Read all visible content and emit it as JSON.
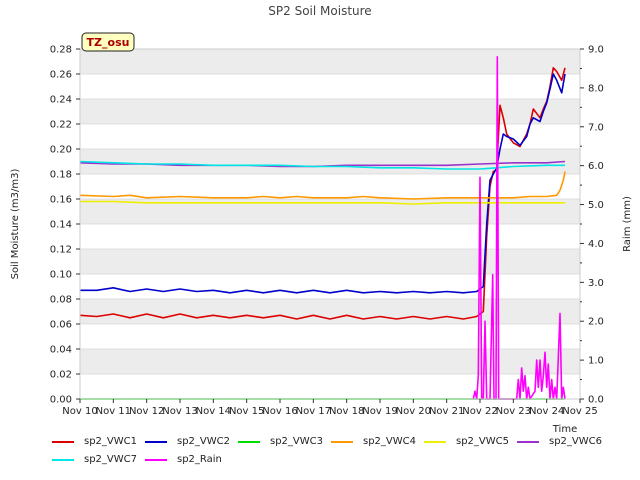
{
  "chart_data": {
    "type": "line",
    "title": "SP2 Soil Moisture",
    "xlabel": "Time",
    "ylabel": "Soil Moisture (m3/m3)",
    "y2label": "Raim (mm)",
    "annotation": "TZ_osu",
    "x_categories": [
      "Nov 10",
      "Nov 11",
      "Nov 12",
      "Nov 13",
      "Nov 14",
      "Nov 15",
      "Nov 16",
      "Nov 17",
      "Nov 18",
      "Nov 19",
      "Nov 20",
      "Nov 21",
      "Nov 22",
      "Nov 23",
      "Nov 24",
      "Nov 25"
    ],
    "xlim": [
      0,
      15
    ],
    "ylim": [
      0.0,
      0.28
    ],
    "yticks": [
      "0.00",
      "0.02",
      "0.04",
      "0.06",
      "0.08",
      "0.10",
      "0.12",
      "0.14",
      "0.16",
      "0.18",
      "0.20",
      "0.22",
      "0.24",
      "0.26",
      "0.28"
    ],
    "y2lim": [
      0.0,
      9.0
    ],
    "y2ticks": [
      "0.0",
      "1.0",
      "2.0",
      "3.0",
      "4.0",
      "5.0",
      "6.0",
      "7.0",
      "8.0",
      "9.0"
    ],
    "series": [
      {
        "name": "sp2_VWC1",
        "color": "#dd0000",
        "axis": "left",
        "points": [
          [
            0,
            0.067
          ],
          [
            0.5,
            0.066
          ],
          [
            1,
            0.068
          ],
          [
            1.5,
            0.065
          ],
          [
            2,
            0.068
          ],
          [
            2.5,
            0.065
          ],
          [
            3,
            0.068
          ],
          [
            3.5,
            0.065
          ],
          [
            4,
            0.067
          ],
          [
            4.5,
            0.065
          ],
          [
            5,
            0.067
          ],
          [
            5.5,
            0.065
          ],
          [
            6,
            0.067
          ],
          [
            6.5,
            0.064
          ],
          [
            7,
            0.067
          ],
          [
            7.5,
            0.064
          ],
          [
            8,
            0.067
          ],
          [
            8.5,
            0.064
          ],
          [
            9,
            0.066
          ],
          [
            9.5,
            0.064
          ],
          [
            10,
            0.066
          ],
          [
            10.5,
            0.064
          ],
          [
            11,
            0.066
          ],
          [
            11.5,
            0.064
          ],
          [
            11.9,
            0.066
          ],
          [
            12.1,
            0.07
          ],
          [
            12.2,
            0.13
          ],
          [
            12.3,
            0.17
          ],
          [
            12.4,
            0.182
          ],
          [
            12.5,
            0.183
          ],
          [
            12.6,
            0.235
          ],
          [
            12.7,
            0.225
          ],
          [
            12.8,
            0.212
          ],
          [
            13,
            0.205
          ],
          [
            13.2,
            0.202
          ],
          [
            13.4,
            0.212
          ],
          [
            13.5,
            0.22
          ],
          [
            13.6,
            0.232
          ],
          [
            13.8,
            0.225
          ],
          [
            13.9,
            0.232
          ],
          [
            14,
            0.238
          ],
          [
            14.1,
            0.25
          ],
          [
            14.2,
            0.265
          ],
          [
            14.3,
            0.262
          ],
          [
            14.45,
            0.255
          ],
          [
            14.55,
            0.265
          ]
        ]
      },
      {
        "name": "sp2_VWC2",
        "color": "#0000cc",
        "axis": "left",
        "points": [
          [
            0,
            0.087
          ],
          [
            0.5,
            0.087
          ],
          [
            1,
            0.089
          ],
          [
            1.5,
            0.086
          ],
          [
            2,
            0.088
          ],
          [
            2.5,
            0.086
          ],
          [
            3,
            0.088
          ],
          [
            3.5,
            0.086
          ],
          [
            4,
            0.087
          ],
          [
            4.5,
            0.085
          ],
          [
            5,
            0.087
          ],
          [
            5.5,
            0.085
          ],
          [
            6,
            0.087
          ],
          [
            6.5,
            0.085
          ],
          [
            7,
            0.087
          ],
          [
            7.5,
            0.085
          ],
          [
            8,
            0.087
          ],
          [
            8.5,
            0.085
          ],
          [
            9,
            0.086
          ],
          [
            9.5,
            0.085
          ],
          [
            10,
            0.086
          ],
          [
            10.5,
            0.085
          ],
          [
            11,
            0.086
          ],
          [
            11.5,
            0.085
          ],
          [
            11.9,
            0.086
          ],
          [
            12.1,
            0.09
          ],
          [
            12.2,
            0.14
          ],
          [
            12.3,
            0.175
          ],
          [
            12.4,
            0.18
          ],
          [
            12.5,
            0.185
          ],
          [
            12.6,
            0.2
          ],
          [
            12.7,
            0.212
          ],
          [
            12.8,
            0.21
          ],
          [
            13,
            0.208
          ],
          [
            13.2,
            0.203
          ],
          [
            13.4,
            0.21
          ],
          [
            13.5,
            0.22
          ],
          [
            13.6,
            0.225
          ],
          [
            13.8,
            0.222
          ],
          [
            13.9,
            0.23
          ],
          [
            14,
            0.237
          ],
          [
            14.1,
            0.248
          ],
          [
            14.2,
            0.26
          ],
          [
            14.3,
            0.255
          ],
          [
            14.45,
            0.245
          ],
          [
            14.55,
            0.26
          ]
        ]
      },
      {
        "name": "sp2_VWC3",
        "color": "#00dd00",
        "axis": "left",
        "points": [
          [
            0,
            0.0
          ],
          [
            14.55,
            0.0
          ]
        ]
      },
      {
        "name": "sp2_VWC4",
        "color": "#ff9900",
        "axis": "left",
        "points": [
          [
            0,
            0.163
          ],
          [
            1,
            0.162
          ],
          [
            1.5,
            0.163
          ],
          [
            2,
            0.161
          ],
          [
            3,
            0.162
          ],
          [
            4,
            0.161
          ],
          [
            5,
            0.161
          ],
          [
            5.5,
            0.162
          ],
          [
            6,
            0.161
          ],
          [
            6.5,
            0.162
          ],
          [
            7,
            0.161
          ],
          [
            8,
            0.161
          ],
          [
            8.5,
            0.162
          ],
          [
            9,
            0.161
          ],
          [
            10,
            0.16
          ],
          [
            11,
            0.161
          ],
          [
            12,
            0.161
          ],
          [
            13,
            0.161
          ],
          [
            13.5,
            0.162
          ],
          [
            14,
            0.162
          ],
          [
            14.3,
            0.163
          ],
          [
            14.4,
            0.167
          ],
          [
            14.5,
            0.175
          ],
          [
            14.55,
            0.182
          ]
        ]
      },
      {
        "name": "sp2_VWC5",
        "color": "#eeee00",
        "axis": "left",
        "points": [
          [
            0,
            0.158
          ],
          [
            1,
            0.158
          ],
          [
            2,
            0.157
          ],
          [
            3,
            0.157
          ],
          [
            4,
            0.157
          ],
          [
            5,
            0.157
          ],
          [
            6,
            0.157
          ],
          [
            7,
            0.157
          ],
          [
            8,
            0.157
          ],
          [
            9,
            0.157
          ],
          [
            10,
            0.156
          ],
          [
            11,
            0.157
          ],
          [
            12,
            0.157
          ],
          [
            13,
            0.157
          ],
          [
            14,
            0.157
          ],
          [
            14.55,
            0.157
          ]
        ]
      },
      {
        "name": "sp2_VWC6",
        "color": "#9933cc",
        "axis": "left",
        "points": [
          [
            0,
            0.189
          ],
          [
            1,
            0.188
          ],
          [
            2,
            0.188
          ],
          [
            3,
            0.187
          ],
          [
            4,
            0.187
          ],
          [
            5,
            0.187
          ],
          [
            6,
            0.186
          ],
          [
            7,
            0.186
          ],
          [
            8,
            0.187
          ],
          [
            9,
            0.187
          ],
          [
            10,
            0.187
          ],
          [
            11,
            0.187
          ],
          [
            12,
            0.188
          ],
          [
            13,
            0.189
          ],
          [
            14,
            0.189
          ],
          [
            14.55,
            0.19
          ]
        ]
      },
      {
        "name": "sp2_VWC7",
        "color": "#00e5e5",
        "axis": "left",
        "points": [
          [
            0,
            0.19
          ],
          [
            1,
            0.189
          ],
          [
            2,
            0.188
          ],
          [
            3,
            0.188
          ],
          [
            4,
            0.187
          ],
          [
            5,
            0.187
          ],
          [
            6,
            0.187
          ],
          [
            7,
            0.186
          ],
          [
            8,
            0.186
          ],
          [
            9,
            0.185
          ],
          [
            10,
            0.185
          ],
          [
            11,
            0.184
          ],
          [
            12,
            0.184
          ],
          [
            12.5,
            0.185
          ],
          [
            13,
            0.186
          ],
          [
            14,
            0.187
          ],
          [
            14.55,
            0.187
          ]
        ]
      },
      {
        "name": "sp2_Rain",
        "color": "#ff00ff",
        "axis": "right",
        "points": [
          [
            11.8,
            0.0
          ],
          [
            11.85,
            0.2
          ],
          [
            11.9,
            0.0
          ],
          [
            11.95,
            0.6
          ],
          [
            12.0,
            5.7
          ],
          [
            12.05,
            0.0
          ],
          [
            12.1,
            0.0
          ],
          [
            12.15,
            2.0
          ],
          [
            12.2,
            0.0
          ],
          [
            12.3,
            0.0
          ],
          [
            12.38,
            3.2
          ],
          [
            12.42,
            0.0
          ],
          [
            12.48,
            0.0
          ],
          [
            12.52,
            8.8
          ],
          [
            12.56,
            0.0
          ],
          [
            13.1,
            0.0
          ],
          [
            13.15,
            0.5
          ],
          [
            13.2,
            0.0
          ],
          [
            13.25,
            0.8
          ],
          [
            13.3,
            0.2
          ],
          [
            13.35,
            0.6
          ],
          [
            13.4,
            0.0
          ],
          [
            13.45,
            0.3
          ],
          [
            13.5,
            0.0
          ],
          [
            13.65,
            0.2
          ],
          [
            13.7,
            1.0
          ],
          [
            13.75,
            0.3
          ],
          [
            13.8,
            1.0
          ],
          [
            13.85,
            0.2
          ],
          [
            13.9,
            0.6
          ],
          [
            13.95,
            1.2
          ],
          [
            14.0,
            0.3
          ],
          [
            14.05,
            0.9
          ],
          [
            14.1,
            0.0
          ],
          [
            14.15,
            0.5
          ],
          [
            14.2,
            0.0
          ],
          [
            14.25,
            0.3
          ],
          [
            14.3,
            0.0
          ],
          [
            14.4,
            2.2
          ],
          [
            14.45,
            0.0
          ],
          [
            14.5,
            0.3
          ],
          [
            14.55,
            0.0
          ]
        ]
      }
    ]
  }
}
